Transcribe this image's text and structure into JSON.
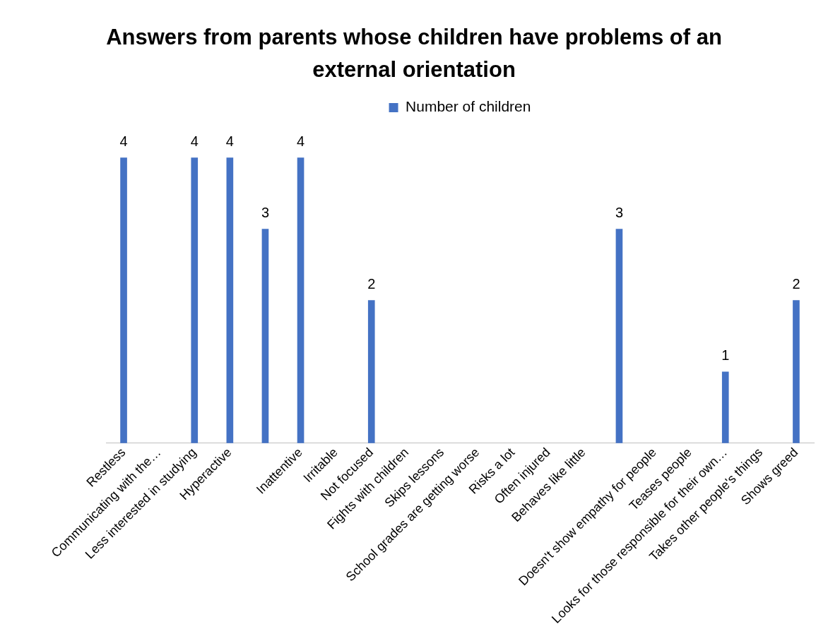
{
  "chart_data": {
    "type": "bar",
    "title": "Answers from parents whose children have problems of an external orientation",
    "categories": [
      "Restless",
      "Communicating with the…",
      "Less interested in studying",
      "Hyperactive",
      null,
      "Inattentive",
      "Irritable",
      "Not focused",
      "Fights with children",
      "Skips lessons",
      "School grades are getting worse",
      "Risks a lot",
      "Often injured",
      "Behaves like little",
      null,
      "Doesn't show empathy for people",
      "Teases people",
      "Looks for those responsible for their own…",
      "Takes other people's things",
      "Shows greed"
    ],
    "series": [
      {
        "name": "Number of children",
        "color": "#4472c4",
        "values": [
          4,
          null,
          4,
          4,
          3,
          4,
          null,
          2,
          null,
          null,
          null,
          null,
          null,
          null,
          3,
          null,
          null,
          1,
          null,
          2
        ]
      }
    ],
    "data_labels": true,
    "legend": "top",
    "grid": false,
    "tick_labels": "x"
  }
}
